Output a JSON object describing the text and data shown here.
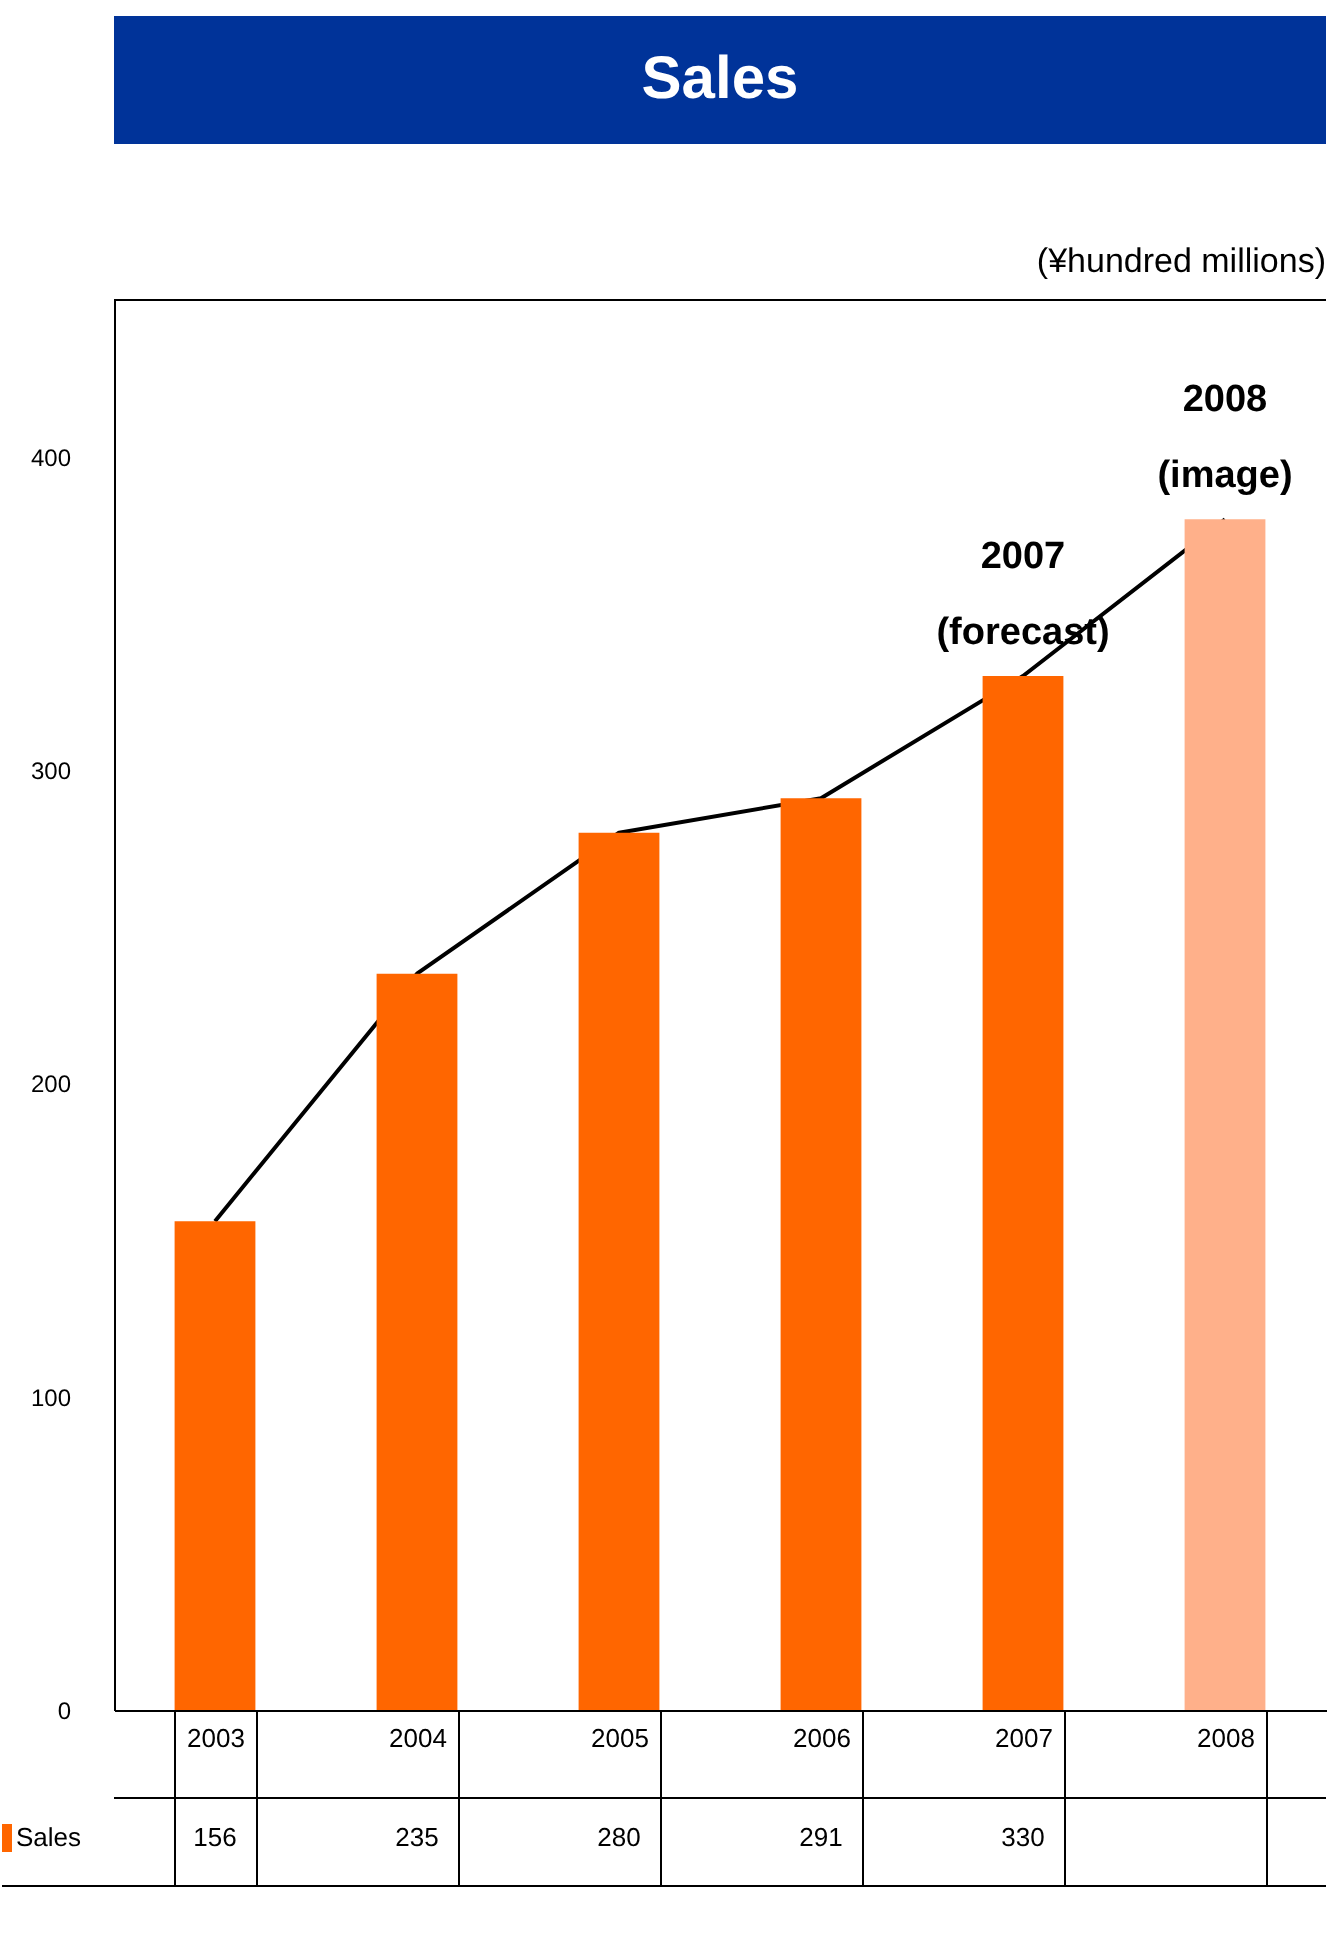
{
  "chart_data": {
    "type": "bar",
    "title": "Sales",
    "categories": [
      "2003",
      "2004",
      "2005",
      "2006",
      "2007",
      "2008"
    ],
    "series": [
      {
        "name": "Sales",
        "color": "#ff6600",
        "colors": [
          "#ff6600",
          "#ff6600",
          "#ff6600",
          "#ff6600",
          "#ff6600",
          "#ffb08a"
        ],
        "values": [
          156,
          235,
          280,
          291,
          330,
          380
        ],
        "value_labels": [
          "156",
          "235",
          "280",
          "291",
          "330",
          null
        ]
      },
      {
        "type": "line",
        "color": "#000000",
        "values": [
          156,
          235,
          280,
          291,
          330,
          380
        ]
      }
    ],
    "annotations": [
      "(¥hundred millions)",
      {
        "text": "2007",
        "x": "2007",
        "y": 330
      },
      {
        "text": "(forecast)",
        "x": "2007",
        "y": 330
      },
      {
        "text": "2008",
        "x": "2008",
        "y": 380
      },
      {
        "text": "(image)",
        "x": "2008",
        "y": 380
      }
    ],
    "ylim": [
      0,
      450
    ],
    "yticks": [
      0,
      100,
      200,
      300,
      400
    ],
    "grid": false,
    "legend": "bottom left"
  }
}
